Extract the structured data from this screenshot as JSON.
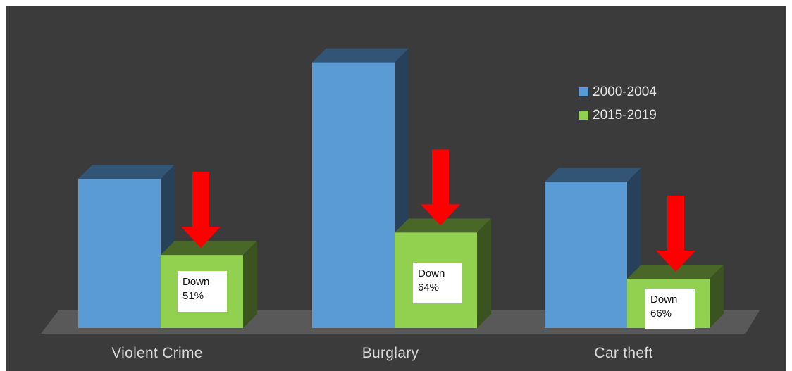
{
  "chart_data": {
    "type": "bar",
    "categories": [
      "Violent Crime",
      "Burglary",
      "Car theft"
    ],
    "series": [
      {
        "name": "2000-2004",
        "color": "#5b9bd5",
        "values": [
          100,
          178,
          98
        ]
      },
      {
        "name": "2015-2019",
        "color": "#92d050",
        "values": [
          49,
          64,
          33
        ]
      }
    ],
    "annotations": [
      {
        "category": "Violent Crime",
        "line1": "Down",
        "line2": "51%",
        "arrow_color": "#ff0000"
      },
      {
        "category": "Burglary",
        "line1": "Down",
        "line2": "64%",
        "arrow_color": "#ff0000"
      },
      {
        "category": "Car theft",
        "line1": "Down",
        "line2": "66%",
        "arrow_color": "#ff0000"
      }
    ],
    "legend_position": "top-right",
    "grid": false,
    "background_color": "#3b3b3b",
    "floor_color": "#595959"
  }
}
